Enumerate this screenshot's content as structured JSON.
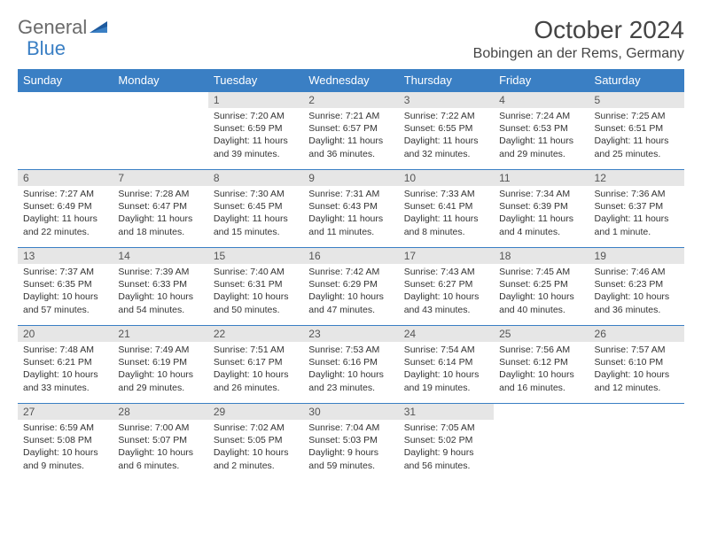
{
  "logo": {
    "text1": "General",
    "text2": "Blue"
  },
  "title": "October 2024",
  "location": "Bobingen an der Rems, Germany",
  "colors": {
    "header_bg": "#3a7fc4",
    "header_text": "#ffffff",
    "daynum_bg": "#e6e6e6",
    "border": "#3a7fc4",
    "logo_gray": "#6b6b6b",
    "logo_blue": "#3a7fc4"
  },
  "weekdays": [
    "Sunday",
    "Monday",
    "Tuesday",
    "Wednesday",
    "Thursday",
    "Friday",
    "Saturday"
  ],
  "weeks": [
    [
      null,
      null,
      {
        "n": "1",
        "sunrise": "7:20 AM",
        "sunset": "6:59 PM",
        "daylight": "11 hours and 39 minutes."
      },
      {
        "n": "2",
        "sunrise": "7:21 AM",
        "sunset": "6:57 PM",
        "daylight": "11 hours and 36 minutes."
      },
      {
        "n": "3",
        "sunrise": "7:22 AM",
        "sunset": "6:55 PM",
        "daylight": "11 hours and 32 minutes."
      },
      {
        "n": "4",
        "sunrise": "7:24 AM",
        "sunset": "6:53 PM",
        "daylight": "11 hours and 29 minutes."
      },
      {
        "n": "5",
        "sunrise": "7:25 AM",
        "sunset": "6:51 PM",
        "daylight": "11 hours and 25 minutes."
      }
    ],
    [
      {
        "n": "6",
        "sunrise": "7:27 AM",
        "sunset": "6:49 PM",
        "daylight": "11 hours and 22 minutes."
      },
      {
        "n": "7",
        "sunrise": "7:28 AM",
        "sunset": "6:47 PM",
        "daylight": "11 hours and 18 minutes."
      },
      {
        "n": "8",
        "sunrise": "7:30 AM",
        "sunset": "6:45 PM",
        "daylight": "11 hours and 15 minutes."
      },
      {
        "n": "9",
        "sunrise": "7:31 AM",
        "sunset": "6:43 PM",
        "daylight": "11 hours and 11 minutes."
      },
      {
        "n": "10",
        "sunrise": "7:33 AM",
        "sunset": "6:41 PM",
        "daylight": "11 hours and 8 minutes."
      },
      {
        "n": "11",
        "sunrise": "7:34 AM",
        "sunset": "6:39 PM",
        "daylight": "11 hours and 4 minutes."
      },
      {
        "n": "12",
        "sunrise": "7:36 AM",
        "sunset": "6:37 PM",
        "daylight": "11 hours and 1 minute."
      }
    ],
    [
      {
        "n": "13",
        "sunrise": "7:37 AM",
        "sunset": "6:35 PM",
        "daylight": "10 hours and 57 minutes."
      },
      {
        "n": "14",
        "sunrise": "7:39 AM",
        "sunset": "6:33 PM",
        "daylight": "10 hours and 54 minutes."
      },
      {
        "n": "15",
        "sunrise": "7:40 AM",
        "sunset": "6:31 PM",
        "daylight": "10 hours and 50 minutes."
      },
      {
        "n": "16",
        "sunrise": "7:42 AM",
        "sunset": "6:29 PM",
        "daylight": "10 hours and 47 minutes."
      },
      {
        "n": "17",
        "sunrise": "7:43 AM",
        "sunset": "6:27 PM",
        "daylight": "10 hours and 43 minutes."
      },
      {
        "n": "18",
        "sunrise": "7:45 AM",
        "sunset": "6:25 PM",
        "daylight": "10 hours and 40 minutes."
      },
      {
        "n": "19",
        "sunrise": "7:46 AM",
        "sunset": "6:23 PM",
        "daylight": "10 hours and 36 minutes."
      }
    ],
    [
      {
        "n": "20",
        "sunrise": "7:48 AM",
        "sunset": "6:21 PM",
        "daylight": "10 hours and 33 minutes."
      },
      {
        "n": "21",
        "sunrise": "7:49 AM",
        "sunset": "6:19 PM",
        "daylight": "10 hours and 29 minutes."
      },
      {
        "n": "22",
        "sunrise": "7:51 AM",
        "sunset": "6:17 PM",
        "daylight": "10 hours and 26 minutes."
      },
      {
        "n": "23",
        "sunrise": "7:53 AM",
        "sunset": "6:16 PM",
        "daylight": "10 hours and 23 minutes."
      },
      {
        "n": "24",
        "sunrise": "7:54 AM",
        "sunset": "6:14 PM",
        "daylight": "10 hours and 19 minutes."
      },
      {
        "n": "25",
        "sunrise": "7:56 AM",
        "sunset": "6:12 PM",
        "daylight": "10 hours and 16 minutes."
      },
      {
        "n": "26",
        "sunrise": "7:57 AM",
        "sunset": "6:10 PM",
        "daylight": "10 hours and 12 minutes."
      }
    ],
    [
      {
        "n": "27",
        "sunrise": "6:59 AM",
        "sunset": "5:08 PM",
        "daylight": "10 hours and 9 minutes."
      },
      {
        "n": "28",
        "sunrise": "7:00 AM",
        "sunset": "5:07 PM",
        "daylight": "10 hours and 6 minutes."
      },
      {
        "n": "29",
        "sunrise": "7:02 AM",
        "sunset": "5:05 PM",
        "daylight": "10 hours and 2 minutes."
      },
      {
        "n": "30",
        "sunrise": "7:04 AM",
        "sunset": "5:03 PM",
        "daylight": "9 hours and 59 minutes."
      },
      {
        "n": "31",
        "sunrise": "7:05 AM",
        "sunset": "5:02 PM",
        "daylight": "9 hours and 56 minutes."
      },
      null,
      null
    ]
  ],
  "labels": {
    "sunrise": "Sunrise:",
    "sunset": "Sunset:",
    "daylight": "Daylight:"
  }
}
